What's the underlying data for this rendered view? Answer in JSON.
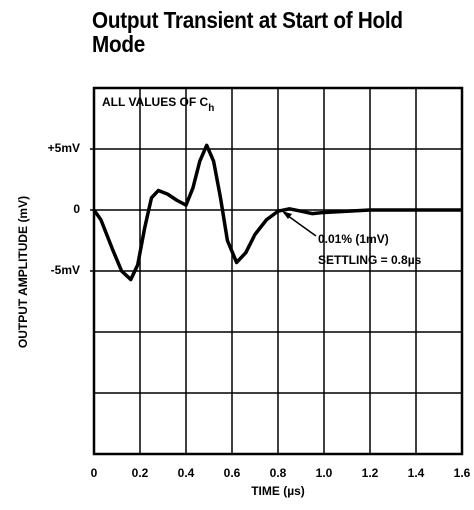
{
  "chart_data": {
    "type": "line",
    "title": "Output Transient at Start of Hold Mode",
    "xlabel": "TIME (µs)",
    "ylabel": "OUTPUT AMPLITUDE (mV)",
    "annotations": [
      {
        "text": "ALL VALUES OF C",
        "sub": "h"
      },
      {
        "text": "0.01% (1mV)"
      },
      {
        "text": "SETTLING = 0.8µs"
      }
    ],
    "x": [
      0,
      0.03,
      0.08,
      0.12,
      0.16,
      0.19,
      0.22,
      0.25,
      0.28,
      0.32,
      0.36,
      0.4,
      0.43,
      0.46,
      0.49,
      0.52,
      0.55,
      0.58,
      0.62,
      0.66,
      0.7,
      0.75,
      0.8,
      0.85,
      0.9,
      0.95,
      1.0,
      1.1,
      1.2,
      1.4,
      1.6
    ],
    "series": [
      {
        "color": "#000000",
        "values": [
          0,
          -0.8,
          -3.2,
          -5.0,
          -5.7,
          -4.5,
          -1.5,
          1.0,
          1.6,
          1.3,
          0.8,
          0.4,
          1.8,
          4.0,
          5.3,
          4.0,
          1.0,
          -2.5,
          -4.3,
          -3.5,
          -2.0,
          -0.8,
          -0.1,
          0.1,
          -0.1,
          -0.3,
          -0.2,
          -0.1,
          0,
          0,
          0
        ]
      }
    ],
    "xlim": [
      0,
      1.6
    ],
    "xticks": [
      0,
      0.2,
      0.4,
      0.6,
      0.8,
      {
        "value": 1,
        "label": "1.0"
      },
      1.2,
      1.4,
      1.6
    ],
    "ylim": [
      -20,
      10
    ],
    "yticks": [
      {
        "value": 5,
        "label": "+5mV"
      },
      0,
      {
        "value": -5,
        "label": "-5mV"
      }
    ],
    "ygrid": [
      -20,
      -15,
      -10,
      -5,
      0,
      5,
      10
    ],
    "grid": true
  }
}
